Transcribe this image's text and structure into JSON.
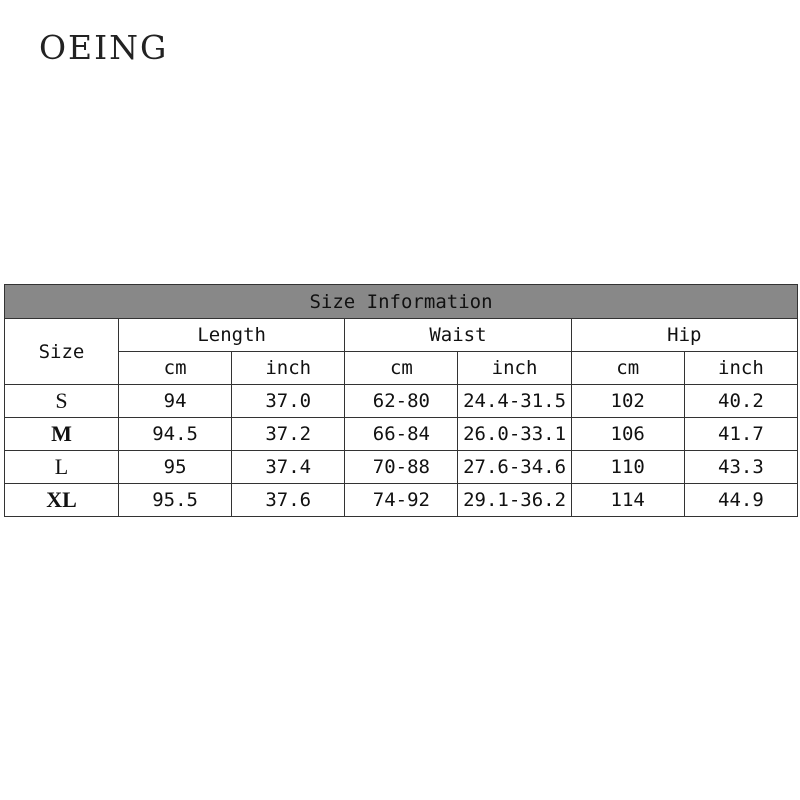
{
  "brand": "OEING",
  "table": {
    "title": "Size Information",
    "size_header": "Size",
    "groups": [
      "Length",
      "Waist",
      "Hip"
    ],
    "units": [
      "cm",
      "inch",
      "cm",
      "inch",
      "cm",
      "inch"
    ],
    "header_color": "#888888",
    "rows": [
      {
        "size": "S",
        "values": [
          "94",
          "37.0",
          "62-80",
          "24.4-31.5",
          "102",
          "40.2"
        ]
      },
      {
        "size": "M",
        "values": [
          "94.5",
          "37.2",
          "66-84",
          "26.0-33.1",
          "106",
          "41.7"
        ]
      },
      {
        "size": "L",
        "values": [
          "95",
          "37.4",
          "70-88",
          "27.6-34.6",
          "110",
          "43.3"
        ]
      },
      {
        "size": "XL",
        "values": [
          "95.5",
          "37.6",
          "74-92",
          "29.1-36.2",
          "114",
          "44.9"
        ]
      }
    ]
  }
}
